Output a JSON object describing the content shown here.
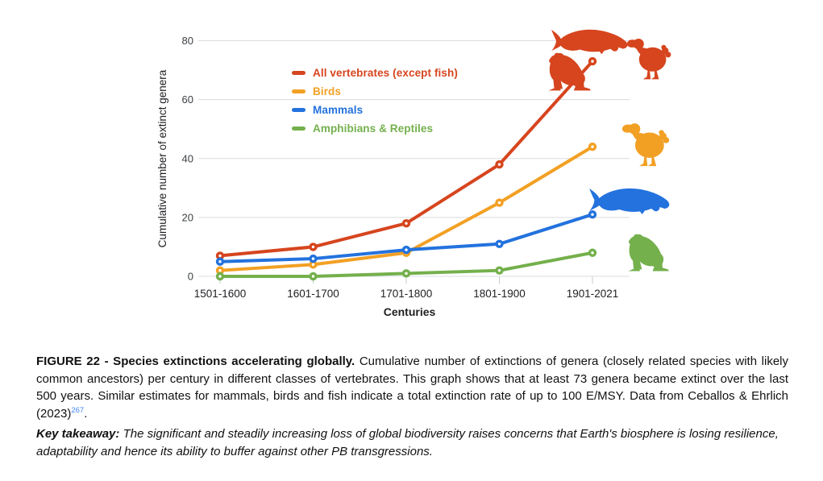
{
  "figure": {
    "caption_label": "FIGURE 22 - Species extinctions accelerating globally.",
    "caption_body": "Cumulative number of extinctions of genera (closely related species with likely common ancestors) per century in different classes of vertebrates. This graph shows that at least 73 genera became extinct over the last 500 years. Similar estimates for mammals, birds and fish indicate a total extinction rate of up to 100 E/MSY.",
    "caption_source": "Data from Ceballos & Ehrlich (2023)",
    "caption_ref": "267",
    "caption_period": ".",
    "takeaway_label": "Key takeaway:",
    "takeaway_text": "The significant and steadily increasing loss of global biodiversity raises concerns that Earth's biosphere is losing resilience, adaptability and hence its ability to buffer against other PB transgressions."
  },
  "chart_data": {
    "type": "line",
    "title": "",
    "xlabel": "Centuries",
    "ylabel": "Cumulative number of extinct genera",
    "categories": [
      "1501-1600",
      "1601-1700",
      "1701-1800",
      "1801-1900",
      "1901-2021"
    ],
    "yticks": [
      0,
      20,
      40,
      60,
      80
    ],
    "ylim": [
      0,
      80
    ],
    "grid": true,
    "legend_position": "inside-top-left",
    "marker_style": "ring",
    "series": [
      {
        "name": "All vertebrates (except fish)",
        "color": "#D6451E",
        "values": [
          7,
          10,
          18,
          38,
          73
        ],
        "icons": [
          "manatee",
          "frog",
          "dodo"
        ]
      },
      {
        "name": "Birds",
        "color": "#F2A024",
        "values": [
          2,
          4,
          8,
          25,
          44
        ],
        "icons": [
          "dodo"
        ]
      },
      {
        "name": "Mammals",
        "color": "#2372DE",
        "values": [
          5,
          6,
          9,
          11,
          21
        ],
        "icons": [
          "manatee"
        ]
      },
      {
        "name": "Amphibians & Reptiles",
        "color": "#74B04C",
        "values": [
          0,
          0,
          1,
          2,
          8
        ],
        "icons": [
          "frog"
        ]
      }
    ],
    "colors": {
      "gridline": "#DADCE0",
      "axis_tick": "#C6C9CE",
      "tick_text": "#3C4043",
      "axis_text": "#202124",
      "reference_link": "#4285F4",
      "background": "#FFFFFF"
    }
  }
}
